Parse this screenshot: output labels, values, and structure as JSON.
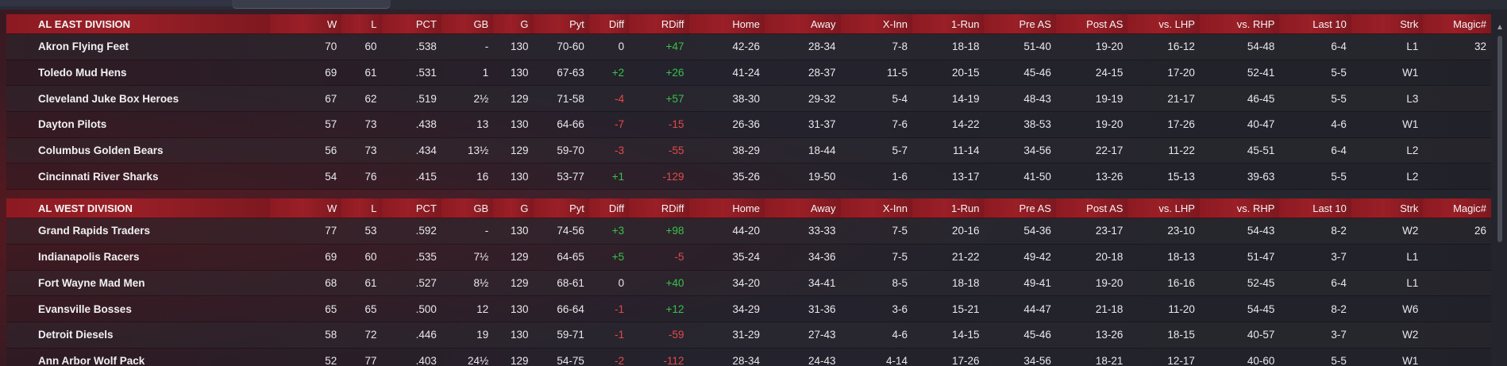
{
  "columns": [
    "W",
    "L",
    "PCT",
    "GB",
    "G",
    "Pyt",
    "Diff",
    "RDiff",
    "Home",
    "Away",
    "X-Inn",
    "1-Run",
    "Pre AS",
    "Post AS",
    "vs. LHP",
    "vs. RHP",
    "Last 10",
    "Strk",
    "Magic#"
  ],
  "colors": {
    "header_bg": "#8c1a22",
    "positive": "#36c24a",
    "negative": "#e24a4a"
  },
  "divisions": [
    {
      "name": "AL EAST DIVISION",
      "teams": [
        {
          "name": "Akron  Flying Feet",
          "w": "70",
          "l": "60",
          "pct": ".538",
          "gb": "-",
          "g": "130",
          "pyt": "70-60",
          "diff": "0",
          "rdiff": "+47",
          "home": "42-26",
          "away": "28-34",
          "xinn": "7-8",
          "onerun": "18-18",
          "preas": "51-40",
          "postas": "19-20",
          "vslhp": "16-12",
          "vsrhp": "54-48",
          "last10": "6-4",
          "strk": "L1",
          "magic": "32"
        },
        {
          "name": "Toledo  Mud Hens",
          "w": "69",
          "l": "61",
          "pct": ".531",
          "gb": "1",
          "g": "130",
          "pyt": "67-63",
          "diff": "+2",
          "rdiff": "+26",
          "home": "41-24",
          "away": "28-37",
          "xinn": "11-5",
          "onerun": "20-15",
          "preas": "45-46",
          "postas": "24-15",
          "vslhp": "17-20",
          "vsrhp": "52-41",
          "last10": "5-5",
          "strk": "W1",
          "magic": ""
        },
        {
          "name": "Cleveland Juke Box Heroes",
          "w": "67",
          "l": "62",
          "pct": ".519",
          "gb": "2½",
          "g": "129",
          "pyt": "71-58",
          "diff": "-4",
          "rdiff": "+57",
          "home": "38-30",
          "away": "29-32",
          "xinn": "5-4",
          "onerun": "14-19",
          "preas": "48-43",
          "postas": "19-19",
          "vslhp": "21-17",
          "vsrhp": "46-45",
          "last10": "5-5",
          "strk": "L3",
          "magic": ""
        },
        {
          "name": "Dayton Pilots",
          "w": "57",
          "l": "73",
          "pct": ".438",
          "gb": "13",
          "g": "130",
          "pyt": "64-66",
          "diff": "-7",
          "rdiff": "-15",
          "home": "26-36",
          "away": "31-37",
          "xinn": "7-6",
          "onerun": "14-22",
          "preas": "38-53",
          "postas": "19-20",
          "vslhp": "17-26",
          "vsrhp": "40-47",
          "last10": "4-6",
          "strk": "W1",
          "magic": ""
        },
        {
          "name": "Columbus Golden Bears",
          "w": "56",
          "l": "73",
          "pct": ".434",
          "gb": "13½",
          "g": "129",
          "pyt": "59-70",
          "diff": "-3",
          "rdiff": "-55",
          "home": "38-29",
          "away": "18-44",
          "xinn": "5-7",
          "onerun": "11-14",
          "preas": "34-56",
          "postas": "22-17",
          "vslhp": "11-22",
          "vsrhp": "45-51",
          "last10": "6-4",
          "strk": "L2",
          "magic": ""
        },
        {
          "name": "Cincinnati River Sharks",
          "w": "54",
          "l": "76",
          "pct": ".415",
          "gb": "16",
          "g": "130",
          "pyt": "53-77",
          "diff": "+1",
          "rdiff": "-129",
          "home": "35-26",
          "away": "19-50",
          "xinn": "1-6",
          "onerun": "13-17",
          "preas": "41-50",
          "postas": "13-26",
          "vslhp": "15-13",
          "vsrhp": "39-63",
          "last10": "5-5",
          "strk": "L2",
          "magic": ""
        }
      ]
    },
    {
      "name": "AL WEST DIVISION",
      "teams": [
        {
          "name": "Grand Rapids Traders",
          "w": "77",
          "l": "53",
          "pct": ".592",
          "gb": "-",
          "g": "130",
          "pyt": "74-56",
          "diff": "+3",
          "rdiff": "+98",
          "home": "44-20",
          "away": "33-33",
          "xinn": "7-5",
          "onerun": "20-16",
          "preas": "54-36",
          "postas": "23-17",
          "vslhp": "23-10",
          "vsrhp": "54-43",
          "last10": "8-2",
          "strk": "W2",
          "magic": "26"
        },
        {
          "name": "Indianapolis Racers",
          "w": "69",
          "l": "60",
          "pct": ".535",
          "gb": "7½",
          "g": "129",
          "pyt": "64-65",
          "diff": "+5",
          "rdiff": "-5",
          "home": "35-24",
          "away": "34-36",
          "xinn": "7-5",
          "onerun": "21-22",
          "preas": "49-42",
          "postas": "20-18",
          "vslhp": "18-13",
          "vsrhp": "51-47",
          "last10": "3-7",
          "strk": "L1",
          "magic": ""
        },
        {
          "name": "Fort Wayne Mad Men",
          "w": "68",
          "l": "61",
          "pct": ".527",
          "gb": "8½",
          "g": "129",
          "pyt": "68-61",
          "diff": "0",
          "rdiff": "+40",
          "home": "34-20",
          "away": "34-41",
          "xinn": "8-5",
          "onerun": "18-18",
          "preas": "49-41",
          "postas": "19-20",
          "vslhp": "16-16",
          "vsrhp": "52-45",
          "last10": "6-4",
          "strk": "L1",
          "magic": ""
        },
        {
          "name": "Evansville Bosses",
          "w": "65",
          "l": "65",
          "pct": ".500",
          "gb": "12",
          "g": "130",
          "pyt": "66-64",
          "diff": "-1",
          "rdiff": "+12",
          "home": "34-29",
          "away": "31-36",
          "xinn": "3-6",
          "onerun": "15-21",
          "preas": "44-47",
          "postas": "21-18",
          "vslhp": "11-20",
          "vsrhp": "54-45",
          "last10": "8-2",
          "strk": "W6",
          "magic": ""
        },
        {
          "name": "Detroit Diesels",
          "w": "58",
          "l": "72",
          "pct": ".446",
          "gb": "19",
          "g": "130",
          "pyt": "59-71",
          "diff": "-1",
          "rdiff": "-59",
          "home": "31-29",
          "away": "27-43",
          "xinn": "4-6",
          "onerun": "14-15",
          "preas": "45-46",
          "postas": "13-26",
          "vslhp": "18-15",
          "vsrhp": "40-57",
          "last10": "3-7",
          "strk": "W2",
          "magic": ""
        },
        {
          "name": "Ann Arbor Wolf Pack",
          "w": "52",
          "l": "77",
          "pct": ".403",
          "gb": "24½",
          "g": "129",
          "pyt": "54-75",
          "diff": "-2",
          "rdiff": "-112",
          "home": "28-34",
          "away": "24-43",
          "xinn": "4-14",
          "onerun": "17-26",
          "preas": "34-56",
          "postas": "18-21",
          "vslhp": "12-17",
          "vsrhp": "40-60",
          "last10": "5-5",
          "strk": "W1",
          "magic": ""
        }
      ]
    }
  ]
}
